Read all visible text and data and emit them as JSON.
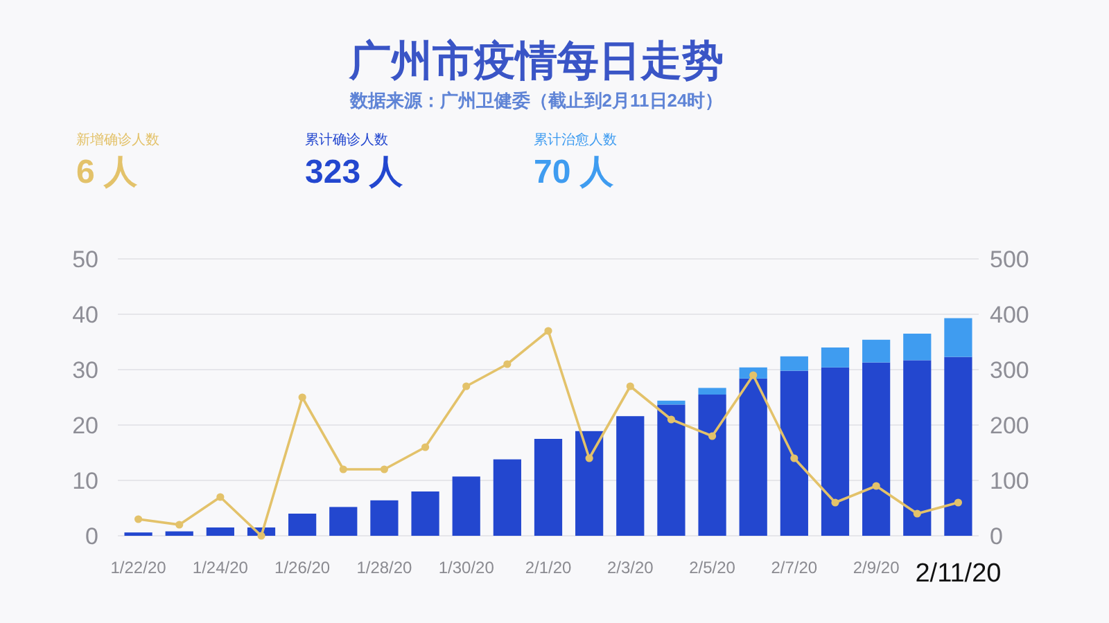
{
  "chart_data": {
    "type": "bar",
    "title": "广州市疫情每日走势",
    "subtitle": "数据来源：广州卫健委（截止到2月11日24时）",
    "categories": [
      "1/22/20",
      null,
      "1/24/20",
      null,
      "1/26/20",
      null,
      "1/28/20",
      null,
      "1/30/20",
      null,
      "2/1/20",
      null,
      "2/3/20",
      null,
      "2/5/20",
      null,
      "2/7/20",
      null,
      "2/9/20",
      null,
      "2/11/20"
    ],
    "stacked": true,
    "series": [
      {
        "name": "新增确诊人数",
        "type": "line",
        "axis": "y",
        "color": "#e3c26a",
        "values": [
          3,
          2,
          7,
          0,
          25,
          12,
          12,
          16,
          27,
          31,
          37,
          14,
          27,
          21,
          18,
          29,
          14,
          6,
          9,
          4,
          6
        ]
      },
      {
        "name": "累计确诊人数",
        "type": "bar",
        "axis": "y2",
        "color": "#2347cf",
        "values": [
          6,
          8,
          15,
          15,
          40,
          52,
          64,
          80,
          107,
          138,
          175,
          189,
          216,
          237,
          255,
          284,
          298,
          304,
          313,
          317,
          323
        ]
      },
      {
        "name": "累计治愈人数",
        "type": "bar",
        "axis": "y2",
        "color": "#3f9cf0",
        "values": [
          null,
          null,
          null,
          null,
          null,
          null,
          null,
          null,
          null,
          null,
          null,
          null,
          null,
          7,
          12,
          20,
          26,
          36,
          41,
          48,
          70
        ]
      }
    ],
    "ylim": [
      0,
      50
    ],
    "yticks": [
      0,
      10,
      20,
      30,
      40,
      50
    ],
    "y2lim": [
      0,
      500
    ],
    "y2ticks": [
      0,
      100,
      200,
      300,
      400,
      500
    ],
    "grid": "y",
    "legend": "top left",
    "marker": "circle",
    "annotations": [
      "6 人",
      "323 人",
      "70 人"
    ]
  }
}
